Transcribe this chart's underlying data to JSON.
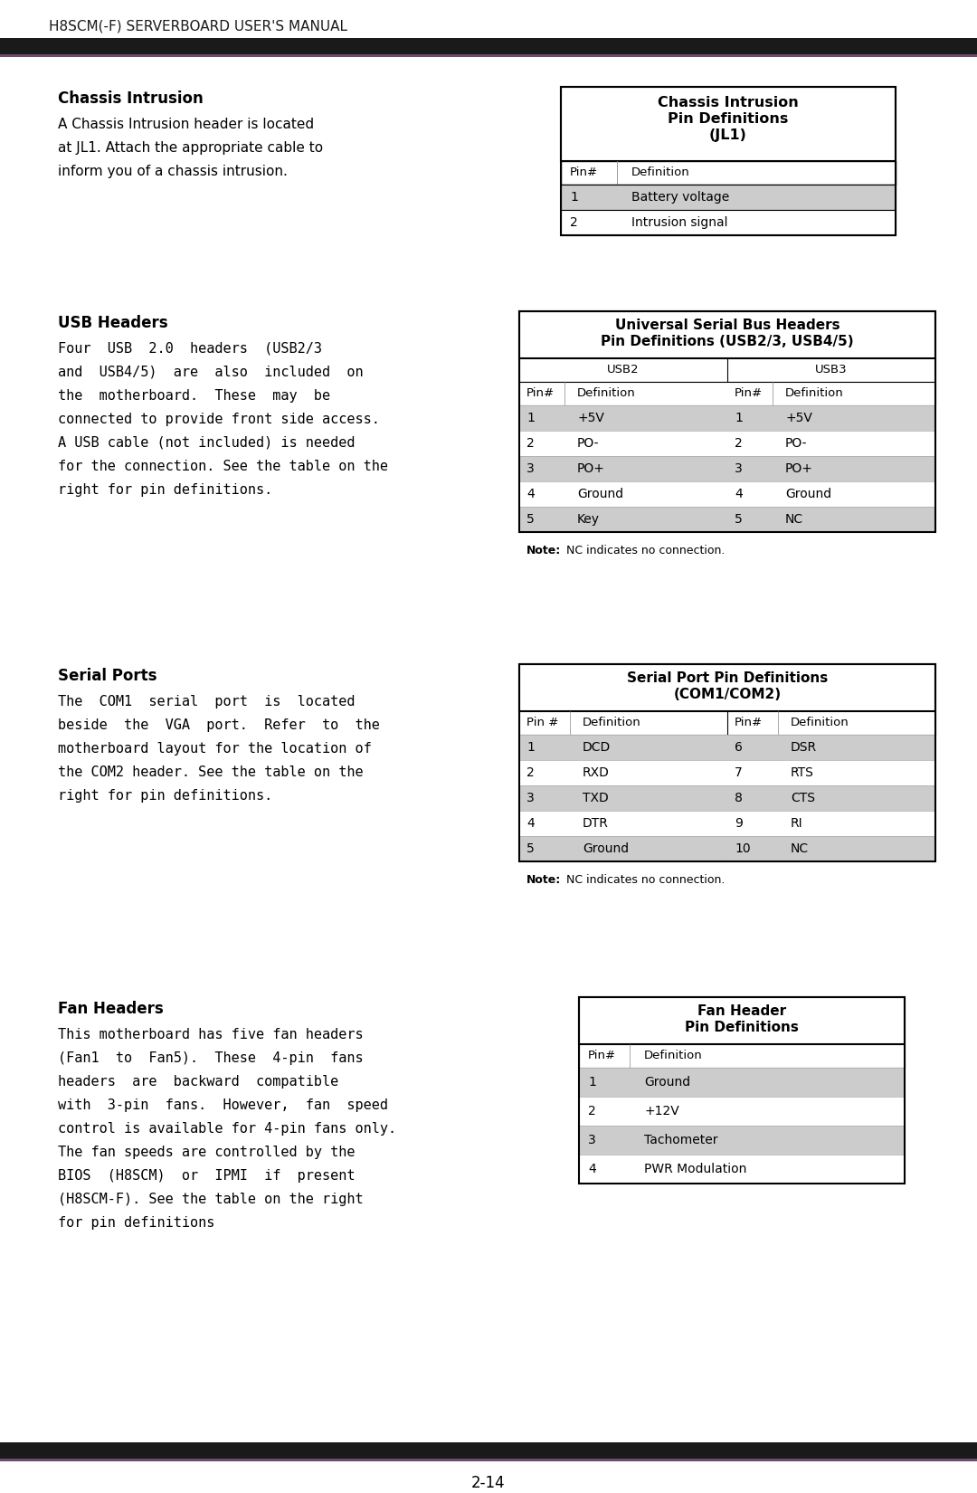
{
  "page_title": "H8SCM(-F) SERVERBOARD USER'S MANUAL",
  "page_number": "2-14",
  "section1_title": "Chassis Intrusion",
  "section1_body_lines": [
    "A Chassis Intrusion header is located",
    "at JL1. Attach the appropriate cable to",
    "inform you of a chassis intrusion."
  ],
  "table1_title": [
    "Chassis Intrusion",
    "Pin Definitions",
    "(JL1)"
  ],
  "table1_col_headers": [
    "Pin#",
    "Definition"
  ],
  "table1_rows": [
    [
      "1",
      "Battery voltage"
    ],
    [
      "2",
      "Intrusion signal"
    ]
  ],
  "section2_title": "USB Headers",
  "section2_body_lines": [
    "Four  USB  2.0  headers  (USB2/3",
    "and  USB4/5)  are  also  included  on",
    "the  motherboard.  These  may  be",
    "connected to provide front side access.",
    "A USB cable (not included) is needed",
    "for the connection. See the table on the",
    "right for pin definitions."
  ],
  "table2_title": [
    "Universal Serial Bus Headers",
    "Pin Definitions (USB2/3, USB4/5)"
  ],
  "table2_sub_headers": [
    "USB2",
    "USB3"
  ],
  "table2_col_headers": [
    "Pin#",
    "Definition",
    "Pin#",
    "Definition"
  ],
  "table2_rows": [
    [
      "1",
      "+5V",
      "1",
      "+5V"
    ],
    [
      "2",
      "PO-",
      "2",
      "PO-"
    ],
    [
      "3",
      "PO+",
      "3",
      "PO+"
    ],
    [
      "4",
      "Ground",
      "4",
      "Ground"
    ],
    [
      "5",
      "Key",
      "5",
      "NC"
    ]
  ],
  "table2_note": "NC indicates no connection.",
  "section3_title": "Serial Ports",
  "section3_body_lines": [
    "The  COM1  serial  port  is  located",
    "beside  the  VGA  port.  Refer  to  the",
    "motherboard layout for the location of",
    "the COM2 header. See the table on the",
    "right for pin definitions."
  ],
  "table3_title": [
    "Serial Port Pin Definitions",
    "(COM1/COM2)"
  ],
  "table3_col_headers": [
    "Pin #",
    "Definition",
    "Pin#",
    "Definition"
  ],
  "table3_rows": [
    [
      "1",
      "DCD",
      "6",
      "DSR"
    ],
    [
      "2",
      "RXD",
      "7",
      "RTS"
    ],
    [
      "3",
      "TXD",
      "8",
      "CTS"
    ],
    [
      "4",
      "DTR",
      "9",
      "RI"
    ],
    [
      "5",
      "Ground",
      "10",
      "NC"
    ]
  ],
  "table3_note": "NC indicates no connection.",
  "section4_title": "Fan Headers",
  "section4_body_lines": [
    "This motherboard has five fan headers",
    "(Fan1  to  Fan5).  These  4-pin  fans",
    "headers  are  backward  compatible",
    "with  3-pin  fans.  However,  fan  speed",
    "control is available for 4-pin fans only.",
    "The fan speeds are controlled by the",
    "BIOS  (H8SCM)  or  IPMI  if  present",
    "(H8SCM-F). See the table on the right",
    "for pin definitions"
  ],
  "table4_title": [
    "Fan Header",
    "Pin Definitions"
  ],
  "table4_col_headers": [
    "Pin#",
    "Definition"
  ],
  "table4_rows": [
    [
      "1",
      "Ground"
    ],
    [
      "2",
      "+12V"
    ],
    [
      "3",
      "Tachometer"
    ],
    [
      "4",
      "PWR Modulation"
    ]
  ],
  "row_gray": "#cccccc",
  "row_white": "#ffffff",
  "border_color": "#000000",
  "header_black": "#1a1a1a",
  "header_line2": "#6b4c6b"
}
